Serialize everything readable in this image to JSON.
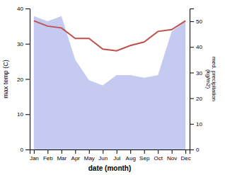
{
  "chart_data": {
    "type": "line",
    "categories": [
      "Jan",
      "Feb",
      "Mar",
      "Apr",
      "May",
      "Jun",
      "Jul",
      "Aug",
      "Sep",
      "Oct",
      "Nov",
      "Dec"
    ],
    "xlabel": "date (month)",
    "ylabel": "max temp (C)",
    "y2label": "med. precipitation\n(kg/m2)",
    "series": [
      {
        "type": "area",
        "axis": "y2",
        "color": "#c5caf0",
        "values": [
          52,
          50,
          52,
          35,
          27,
          25,
          29,
          29,
          28,
          29,
          46,
          50
        ]
      },
      {
        "type": "line",
        "color": "#c0504d",
        "values": [
          36.5,
          35.0,
          34.5,
          31.5,
          31.5,
          28.5,
          28.0,
          29.5,
          30.5,
          33.5,
          34.0,
          36.5
        ]
      }
    ],
    "ylim": [
      0,
      40
    ],
    "yticks": [
      0,
      10,
      20,
      30,
      40
    ],
    "y2lim": [
      0,
      55
    ],
    "y2ticks": [
      0,
      10,
      20,
      30,
      40,
      50
    ],
    "grid": false
  }
}
